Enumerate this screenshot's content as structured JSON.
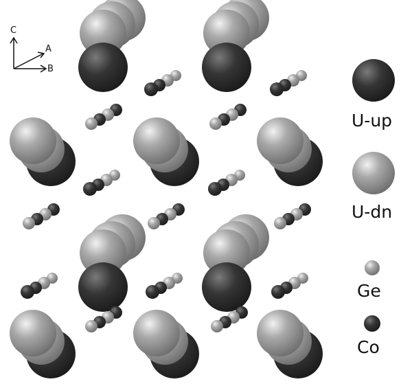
{
  "axes": {
    "c": "C",
    "a": "A",
    "b": "B"
  },
  "legend": [
    {
      "label": "U-up",
      "color": "#2d2d2d",
      "icon": "large-dark-sphere"
    },
    {
      "label": "U-dn",
      "color": "#9a9a9a",
      "icon": "large-light-sphere"
    },
    {
      "label": "Ge",
      "color": "#a8a8a8",
      "icon": "small-light-sphere"
    },
    {
      "label": "Co",
      "color": "#333333",
      "icon": "small-dark-sphere"
    }
  ]
}
